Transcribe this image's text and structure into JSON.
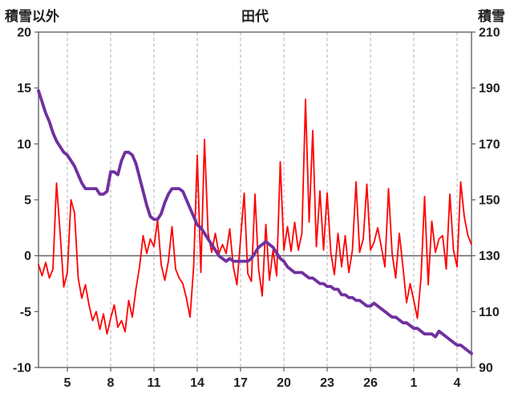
{
  "header": {
    "left_axis_title": "積雪以外",
    "title": "田代",
    "right_axis_title": "積雪"
  },
  "chart_data": {
    "type": "line",
    "title": "田代",
    "left_axis": {
      "title": "積雪以外",
      "min": -10,
      "max": 20,
      "ticks": [
        20,
        15,
        10,
        5,
        0,
        -5,
        -10
      ]
    },
    "right_axis": {
      "title": "積雪",
      "min": 90,
      "max": 210,
      "ticks": [
        210,
        190,
        170,
        150,
        130,
        110,
        90
      ]
    },
    "x_axis": {
      "min": 0,
      "max": 30,
      "tick_positions": [
        2,
        5,
        8,
        11,
        14,
        17,
        20,
        23,
        26,
        29
      ],
      "tick_labels": [
        "5",
        "8",
        "11",
        "14",
        "17",
        "20",
        "23",
        "26",
        "1",
        "4"
      ]
    },
    "grid": "vertical-dashed",
    "legend": "none",
    "series": [
      {
        "name": "積雪以外",
        "axis": "left",
        "color": "#ff0000",
        "width": 1.8,
        "t_start": 0,
        "t_step": 0.25,
        "values": [
          -0.8,
          -1.8,
          -0.6,
          -2.0,
          -1.2,
          6.5,
          2.0,
          -2.8,
          -1.5,
          5.0,
          3.8,
          -2.0,
          -3.8,
          -2.6,
          -4.4,
          -5.8,
          -5.0,
          -6.6,
          -5.2,
          -7.0,
          -5.6,
          -4.4,
          -6.4,
          -5.8,
          -6.8,
          -4.0,
          -5.5,
          -3.0,
          -1.0,
          1.8,
          0.2,
          1.5,
          0.8,
          3.2,
          -0.8,
          -2.2,
          -0.5,
          2.6,
          -1.2,
          -2.0,
          -2.5,
          -3.8,
          -5.5,
          -1.0,
          9.0,
          -1.5,
          10.4,
          2.0,
          0.3,
          2.0,
          0.2,
          1.0,
          0.2,
          2.4,
          -1.0,
          -2.6,
          1.5,
          5.6,
          -1.6,
          -2.3,
          5.5,
          -1.2,
          -3.6,
          2.8,
          -2.2,
          0.5,
          -1.8,
          8.4,
          0.5,
          2.6,
          0.4,
          3.0,
          0.5,
          2.0,
          14.0,
          3.0,
          11.2,
          0.8,
          5.8,
          0.5,
          5.6,
          0.3,
          -1.7,
          2.0,
          -1.0,
          1.8,
          -1.5,
          0.5,
          6.6,
          0.3,
          1.5,
          6.4,
          0.5,
          1.2,
          2.5,
          0.8,
          -1.0,
          6.0,
          0.2,
          -2.0,
          2.0,
          -1.0,
          -4.2,
          -2.5,
          -4.0,
          -5.6,
          -2.0,
          5.3,
          -2.6,
          3.1,
          0.3,
          1.5,
          1.8,
          -1.2,
          5.5,
          0.5,
          -1.0,
          6.6,
          3.5,
          1.8,
          1.0
        ]
      },
      {
        "name": "積雪",
        "axis": "right",
        "color": "#7030a0",
        "width": 3.8,
        "t_start": 0,
        "t_step": 0.25,
        "values": [
          189,
          185,
          181,
          178,
          174,
          171,
          169,
          167,
          166,
          164,
          162,
          159,
          156,
          154,
          154,
          154,
          154,
          152,
          152,
          153,
          160,
          160,
          159,
          164,
          167,
          167,
          166,
          163,
          158,
          153,
          148,
          144,
          143,
          143,
          145,
          149,
          152,
          154,
          154,
          154,
          153,
          150,
          147,
          144,
          141,
          140,
          138,
          136,
          134,
          132,
          130,
          129,
          128,
          129,
          128,
          128,
          128,
          128,
          128,
          129,
          131,
          133,
          134,
          135,
          134,
          133,
          131,
          129,
          128,
          126,
          125,
          124,
          124,
          124,
          123,
          122,
          122,
          121,
          120,
          120,
          119,
          119,
          118,
          118,
          116,
          116,
          115,
          115,
          114,
          114,
          113,
          112,
          112,
          113,
          112,
          111,
          110,
          109,
          108,
          108,
          107,
          106,
          106,
          105,
          104,
          104,
          103,
          102,
          102,
          102,
          101,
          103,
          102,
          101,
          100,
          99,
          98,
          98,
          97,
          96,
          95
        ]
      }
    ],
    "styles": {
      "grid_color": "#b3b3b3",
      "zero_line_color": "#6e6e6e",
      "frame_color": "#595959",
      "tick_color": "#595959",
      "label_color": "#1f1f1f",
      "background": "#ffffff"
    }
  }
}
